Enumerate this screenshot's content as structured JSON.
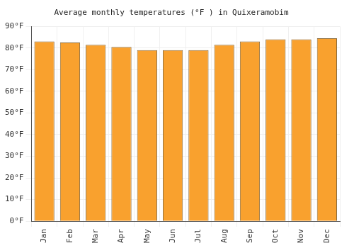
{
  "chart_data": {
    "type": "bar",
    "title": "Average monthly temperatures (°F ) in Quixeramobim",
    "categories": [
      "Jan",
      "Feb",
      "Mar",
      "Apr",
      "May",
      "Jun",
      "Jul",
      "Aug",
      "Sep",
      "Oct",
      "Nov",
      "Dec"
    ],
    "values": [
      83,
      82.5,
      81.5,
      80.5,
      79,
      79,
      79,
      81.5,
      83,
      84,
      84,
      84.5
    ],
    "color": "#f9a12e",
    "ylim": [
      0,
      90
    ],
    "yticks": [
      {
        "value": 0,
        "label": "0°F"
      },
      {
        "value": 10,
        "label": "10°F"
      },
      {
        "value": 20,
        "label": "20°F"
      },
      {
        "value": 30,
        "label": "30°F"
      },
      {
        "value": 40,
        "label": "40°F"
      },
      {
        "value": 50,
        "label": "50°F"
      },
      {
        "value": 60,
        "label": "60°F"
      },
      {
        "value": 70,
        "label": "70°F"
      },
      {
        "value": 80,
        "label": "80°F"
      },
      {
        "value": 90,
        "label": "90°F"
      }
    ],
    "grid": true
  }
}
